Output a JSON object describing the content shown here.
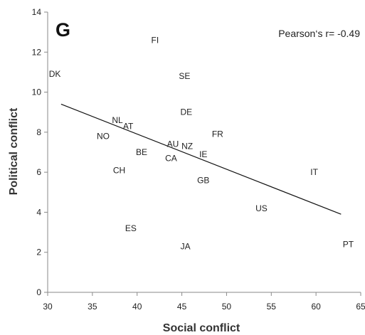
{
  "chart_data": {
    "type": "scatter",
    "title": "",
    "panel_label": "G",
    "annotation": "Pearson‘s r= -0.49",
    "xlabel": "Social conflict",
    "ylabel": "Political conflict",
    "xlim": [
      30,
      65
    ],
    "ylim": [
      0,
      14
    ],
    "xticks": [
      30,
      35,
      40,
      45,
      50,
      55,
      60,
      65
    ],
    "yticks": [
      0,
      2,
      4,
      6,
      8,
      10,
      12,
      14
    ],
    "grid": false,
    "legend": "none",
    "points": [
      {
        "label": "FI",
        "x": 42.0,
        "y": 12.6
      },
      {
        "label": "DK",
        "x": 30.8,
        "y": 10.9
      },
      {
        "label": "SE",
        "x": 45.3,
        "y": 10.8
      },
      {
        "label": "DE",
        "x": 45.5,
        "y": 9.0
      },
      {
        "label": "NL",
        "x": 37.8,
        "y": 8.6
      },
      {
        "label": "AT",
        "x": 39.0,
        "y": 8.3
      },
      {
        "label": "FR",
        "x": 49.0,
        "y": 7.9
      },
      {
        "label": "NO",
        "x": 36.2,
        "y": 7.8
      },
      {
        "label": "AU",
        "x": 44.0,
        "y": 7.4
      },
      {
        "label": "NZ",
        "x": 45.6,
        "y": 7.3
      },
      {
        "label": "BE",
        "x": 40.5,
        "y": 7.0
      },
      {
        "label": "IE",
        "x": 47.4,
        "y": 6.9
      },
      {
        "label": "CA",
        "x": 43.8,
        "y": 6.7
      },
      {
        "label": "CH",
        "x": 38.0,
        "y": 6.1
      },
      {
        "label": "IT",
        "x": 59.8,
        "y": 6.0
      },
      {
        "label": "GB",
        "x": 47.4,
        "y": 5.6
      },
      {
        "label": "US",
        "x": 53.9,
        "y": 4.2
      },
      {
        "label": "ES",
        "x": 39.3,
        "y": 3.2
      },
      {
        "label": "JA",
        "x": 45.4,
        "y": 2.3
      },
      {
        "label": "PT",
        "x": 63.6,
        "y": 2.4
      }
    ],
    "trendline": {
      "x": [
        31.5,
        62.8
      ],
      "y": [
        9.4,
        3.9
      ]
    }
  }
}
